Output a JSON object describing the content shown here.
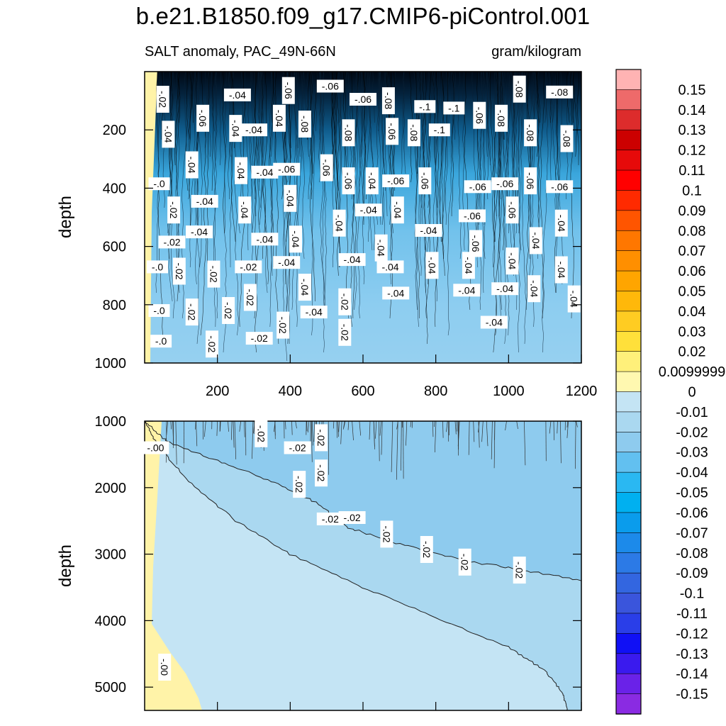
{
  "page": {
    "title": "b.e21.B1850.f09_g17.CMIP6-piControl.001",
    "subtitle_left": "SALT anomaly, PAC_49N-66N",
    "subtitle_right": "gram/kilogram"
  },
  "chart_data": [
    {
      "type": "contour",
      "panel": "top",
      "title": "SALT anomaly, PAC_49N-66N",
      "units": "gram/kilogram",
      "xlabel": "",
      "ylabel": "depth",
      "xlim": [
        0,
        1200
      ],
      "ylim": [
        1000,
        0
      ],
      "xticks": [
        200,
        400,
        600,
        800,
        1000,
        1200
      ],
      "yticks": [
        200,
        400,
        600,
        800,
        1000
      ],
      "contour_labels": [
        {
          "x": 50,
          "y": 95,
          "text": "-.02"
        },
        {
          "x": 255,
          "y": 80,
          "text": "-.04"
        },
        {
          "x": 395,
          "y": 65,
          "text": "-.06"
        },
        {
          "x": 510,
          "y": 50,
          "text": "-.06"
        },
        {
          "x": 600,
          "y": 95,
          "text": "-.06"
        },
        {
          "x": 670,
          "y": 100,
          "text": "-.08"
        },
        {
          "x": 770,
          "y": 120,
          "text": "-.1"
        },
        {
          "x": 850,
          "y": 125,
          "text": "-.1"
        },
        {
          "x": 1030,
          "y": 60,
          "text": "-.08"
        },
        {
          "x": 1140,
          "y": 70,
          "text": "-.08"
        },
        {
          "x": 160,
          "y": 160,
          "text": "-.06"
        },
        {
          "x": 250,
          "y": 195,
          "text": "-.04"
        },
        {
          "x": 300,
          "y": 200,
          "text": "-.04"
        },
        {
          "x": 370,
          "y": 160,
          "text": "-.04"
        },
        {
          "x": 440,
          "y": 180,
          "text": "-.08"
        },
        {
          "x": 560,
          "y": 210,
          "text": "-.08"
        },
        {
          "x": 680,
          "y": 205,
          "text": "-.06"
        },
        {
          "x": 740,
          "y": 210,
          "text": "-.08"
        },
        {
          "x": 810,
          "y": 200,
          "text": "-.1"
        },
        {
          "x": 920,
          "y": 150,
          "text": "-.06"
        },
        {
          "x": 980,
          "y": 160,
          "text": "-.08"
        },
        {
          "x": 1060,
          "y": 210,
          "text": "-.08"
        },
        {
          "x": 1160,
          "y": 230,
          "text": "-.08"
        },
        {
          "x": 65,
          "y": 215,
          "text": "-.04"
        },
        {
          "x": 130,
          "y": 320,
          "text": "-.04"
        },
        {
          "x": 265,
          "y": 340,
          "text": "-.04"
        },
        {
          "x": 330,
          "y": 345,
          "text": "-.04"
        },
        {
          "x": 390,
          "y": 335,
          "text": "-.06"
        },
        {
          "x": 500,
          "y": 330,
          "text": "-.06"
        },
        {
          "x": 560,
          "y": 375,
          "text": "-.06"
        },
        {
          "x": 625,
          "y": 375,
          "text": "-.04"
        },
        {
          "x": 690,
          "y": 375,
          "text": "-.06"
        },
        {
          "x": 770,
          "y": 375,
          "text": "-.06"
        },
        {
          "x": 915,
          "y": 395,
          "text": "-.06"
        },
        {
          "x": 990,
          "y": 385,
          "text": "-.06"
        },
        {
          "x": 1060,
          "y": 375,
          "text": "-.06"
        },
        {
          "x": 1140,
          "y": 395,
          "text": "-.06"
        },
        {
          "x": 40,
          "y": 385,
          "text": "-.0"
        },
        {
          "x": 165,
          "y": 445,
          "text": "-.04"
        },
        {
          "x": 400,
          "y": 435,
          "text": "-.04"
        },
        {
          "x": 80,
          "y": 475,
          "text": "-.02"
        },
        {
          "x": 275,
          "y": 475,
          "text": "-.04"
        },
        {
          "x": 535,
          "y": 520,
          "text": "-.04"
        },
        {
          "x": 615,
          "y": 475,
          "text": "-.04"
        },
        {
          "x": 695,
          "y": 475,
          "text": "-.04"
        },
        {
          "x": 900,
          "y": 495,
          "text": "-.06"
        },
        {
          "x": 1010,
          "y": 475,
          "text": "-.06"
        },
        {
          "x": 1145,
          "y": 520,
          "text": "-.04"
        },
        {
          "x": 150,
          "y": 550,
          "text": "-.04"
        },
        {
          "x": 75,
          "y": 585,
          "text": "-.02"
        },
        {
          "x": 330,
          "y": 575,
          "text": "-.04"
        },
        {
          "x": 415,
          "y": 575,
          "text": "-.04"
        },
        {
          "x": 650,
          "y": 605,
          "text": "-.04"
        },
        {
          "x": 780,
          "y": 545,
          "text": "-.04"
        },
        {
          "x": 910,
          "y": 590,
          "text": "-.06"
        },
        {
          "x": 1075,
          "y": 580,
          "text": "-.04"
        },
        {
          "x": 35,
          "y": 670,
          "text": "-.0"
        },
        {
          "x": 95,
          "y": 685,
          "text": "-.02"
        },
        {
          "x": 190,
          "y": 695,
          "text": "-.02"
        },
        {
          "x": 285,
          "y": 670,
          "text": "-.02"
        },
        {
          "x": 390,
          "y": 655,
          "text": "-.04"
        },
        {
          "x": 570,
          "y": 645,
          "text": "-.04"
        },
        {
          "x": 675,
          "y": 670,
          "text": "-.04"
        },
        {
          "x": 790,
          "y": 665,
          "text": "-.04"
        },
        {
          "x": 890,
          "y": 665,
          "text": "-.04"
        },
        {
          "x": 1010,
          "y": 650,
          "text": "-.04"
        },
        {
          "x": 1145,
          "y": 680,
          "text": "-.04"
        },
        {
          "x": 440,
          "y": 740,
          "text": "-.04"
        },
        {
          "x": 290,
          "y": 775,
          "text": "-.02"
        },
        {
          "x": 550,
          "y": 790,
          "text": "-.02"
        },
        {
          "x": 690,
          "y": 760,
          "text": "-.04"
        },
        {
          "x": 885,
          "y": 750,
          "text": "-.04"
        },
        {
          "x": 990,
          "y": 745,
          "text": "-.04"
        },
        {
          "x": 1070,
          "y": 745,
          "text": "-.04"
        },
        {
          "x": 1180,
          "y": 780,
          "text": "-.04"
        },
        {
          "x": 40,
          "y": 820,
          "text": "-.0"
        },
        {
          "x": 130,
          "y": 825,
          "text": "-.02"
        },
        {
          "x": 230,
          "y": 820,
          "text": "-.02"
        },
        {
          "x": 465,
          "y": 825,
          "text": "-.04"
        },
        {
          "x": 960,
          "y": 860,
          "text": "-.04"
        },
        {
          "x": 380,
          "y": 870,
          "text": "-.02"
        },
        {
          "x": 550,
          "y": 895,
          "text": "-.02"
        },
        {
          "x": 315,
          "y": 915,
          "text": "-.02"
        },
        {
          "x": 185,
          "y": 935,
          "text": "-.02"
        },
        {
          "x": 45,
          "y": 925,
          "text": "-.0"
        }
      ]
    },
    {
      "type": "contour",
      "panel": "bottom",
      "xlabel": "",
      "ylabel": "depth",
      "xlim": [
        0,
        1200
      ],
      "ylim": [
        5350,
        1000
      ],
      "yticks": [
        1000,
        2000,
        3000,
        4000,
        5000
      ],
      "contour_labels": [
        {
          "x": 30,
          "y": 1400,
          "text": "-.00"
        },
        {
          "x": 320,
          "y": 1190,
          "text": "-.02"
        },
        {
          "x": 420,
          "y": 1400,
          "text": "-.02"
        },
        {
          "x": 485,
          "y": 1250,
          "text": "-.02"
        },
        {
          "x": 485,
          "y": 1780,
          "text": "-.02"
        },
        {
          "x": 425,
          "y": 1950,
          "text": "-.02"
        },
        {
          "x": 510,
          "y": 2470,
          "text": "-.02"
        },
        {
          "x": 570,
          "y": 2450,
          "text": "-.02"
        },
        {
          "x": 665,
          "y": 2700,
          "text": "-.02"
        },
        {
          "x": 775,
          "y": 2930,
          "text": "-.02"
        },
        {
          "x": 880,
          "y": 3120,
          "text": "-.02"
        },
        {
          "x": 1030,
          "y": 3240,
          "text": "-.02"
        },
        {
          "x": 55,
          "y": 4700,
          "text": "-.00"
        }
      ]
    },
    {
      "type": "colorbar",
      "labels": [
        "0.15",
        "0.14",
        "0.13",
        "0.12",
        "0.11",
        "0.1",
        "0.09",
        "0.08",
        "0.07",
        "0.06",
        "0.05",
        "0.04",
        "0.03",
        "0.02",
        "0.0099999",
        "0",
        "-0.01",
        "-0.02",
        "-0.03",
        "-0.04",
        "-0.05",
        "-0.06",
        "-0.07",
        "-0.08",
        "-0.09",
        "-0.1",
        "-0.11",
        "-0.12",
        "-0.13",
        "-0.14",
        "-0.15"
      ],
      "colors": [
        "#ffb3b3",
        "#ee6a6a",
        "#dd2c2c",
        "#cc0000",
        "#e60a0a",
        "#ff0000",
        "#ff2a00",
        "#ff5500",
        "#ff7700",
        "#ff8f00",
        "#ffa500",
        "#ffb80a",
        "#ffcc22",
        "#ffe03a",
        "#fff07a",
        "#fff8b0",
        "#c4e4f4",
        "#aad8f0",
        "#8ecbee",
        "#62c0f0",
        "#2ab8f2",
        "#00b0f0",
        "#0a9cec",
        "#1c8aea",
        "#2c7ae6",
        "#3366e0",
        "#3a55dc",
        "#2a3ee8",
        "#1010f5",
        "#3a1aee",
        "#6a22e8",
        "#8a2be2"
      ]
    }
  ]
}
